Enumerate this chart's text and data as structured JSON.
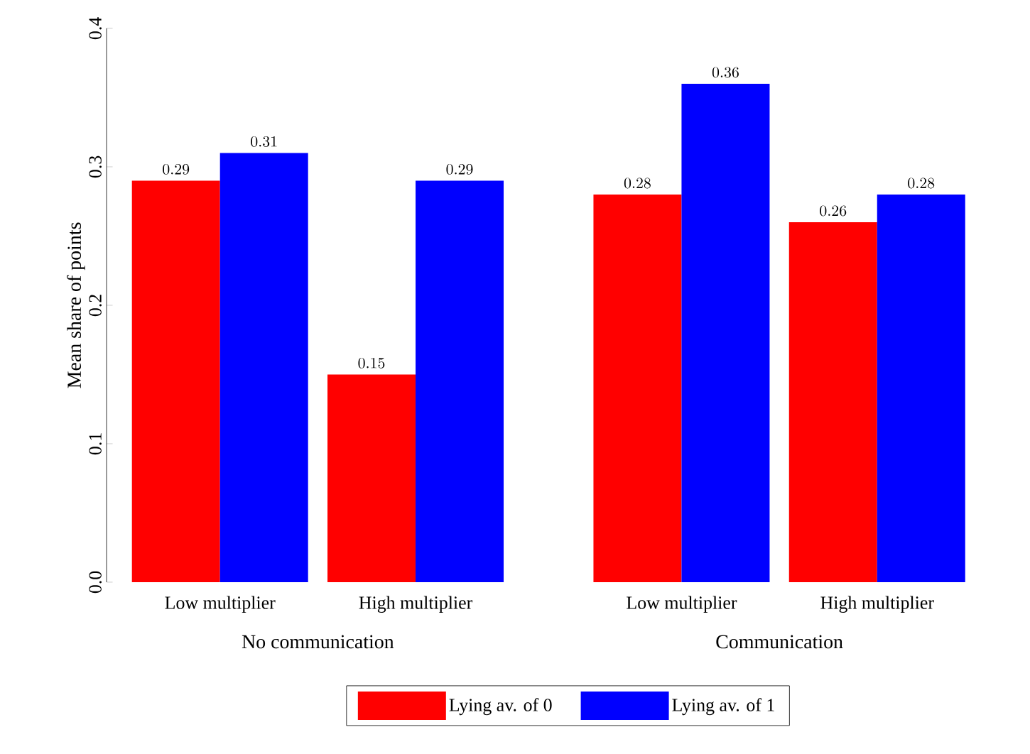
{
  "chart_data": {
    "type": "bar",
    "ylabel": "Mean share of points",
    "categories": [
      "Low multiplier",
      "High multiplier",
      "Low multiplier",
      "High multiplier"
    ],
    "annotations": [
      "No communication",
      "Communication"
    ],
    "series": [
      {
        "name": "Lying av. of 0",
        "color": "#ff0000",
        "values": [
          0.29,
          0.15,
          0.28,
          0.26
        ]
      },
      {
        "name": "Lying av. of 1",
        "color": "#0000ff",
        "values": [
          0.31,
          0.29,
          0.36,
          0.28
        ]
      }
    ],
    "ylim": [
      0,
      0.4
    ],
    "yticks": [
      {
        "value": 0,
        "label": "0.0"
      },
      0.1,
      0.2,
      0.3,
      0.4
    ],
    "data_labels": true,
    "legend": "bottom"
  }
}
